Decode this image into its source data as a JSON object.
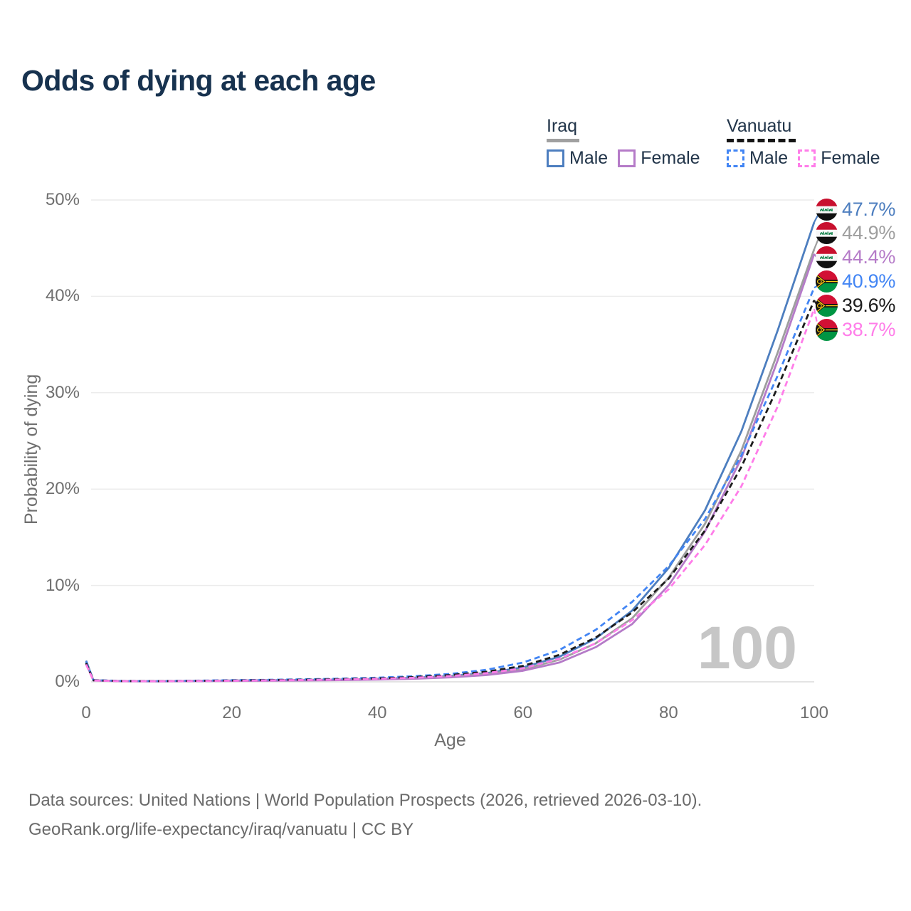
{
  "title": "Odds of dying at each age",
  "legend": {
    "groups": [
      {
        "country": "Iraq",
        "line_style": "solid",
        "underline_color": "#a0a0a0",
        "items": [
          {
            "label": "Male",
            "color": "#4d7ebf"
          },
          {
            "label": "Female",
            "color": "#b57bc8"
          }
        ]
      },
      {
        "country": "Vanuatu",
        "line_style": "dashed",
        "underline_color": "#151515",
        "items": [
          {
            "label": "Male",
            "color": "#4285f4"
          },
          {
            "label": "Female",
            "color": "#ff7de9"
          }
        ]
      }
    ]
  },
  "chart_data": {
    "type": "line",
    "title": "Odds of dying at each age",
    "xlabel": "Age",
    "ylabel": "Probability of dying",
    "xlim": [
      0,
      100
    ],
    "ylim": [
      0,
      50
    ],
    "x_ticks": [
      0,
      20,
      40,
      60,
      80,
      100
    ],
    "y_ticks": [
      "0%",
      "10%",
      "20%",
      "30%",
      "40%",
      "50%"
    ],
    "grid": "horizontal",
    "legend_position": "top-right",
    "age_indicator": "100",
    "x": [
      0,
      1,
      5,
      10,
      15,
      20,
      25,
      30,
      35,
      40,
      45,
      50,
      55,
      60,
      65,
      70,
      75,
      80,
      85,
      90,
      95,
      100
    ],
    "series": [
      {
        "id": "iraq-male",
        "country": "Iraq",
        "group": "Male",
        "color": "#4d7ebf",
        "dashed": false,
        "end_label": "47.7%",
        "end_value": 47.7,
        "values": [
          2.2,
          0.16,
          0.08,
          0.07,
          0.1,
          0.14,
          0.17,
          0.2,
          0.24,
          0.31,
          0.42,
          0.6,
          0.9,
          1.5,
          2.6,
          4.5,
          7.4,
          11.8,
          17.8,
          26.0,
          36.5,
          47.7
        ]
      },
      {
        "id": "iraq-all",
        "country": "Iraq",
        "group": "All",
        "color": "#9e9e9e",
        "dashed": false,
        "end_label": "44.9%",
        "end_value": 44.9,
        "values": [
          2.05,
          0.15,
          0.07,
          0.06,
          0.09,
          0.12,
          0.14,
          0.17,
          0.21,
          0.27,
          0.37,
          0.53,
          0.8,
          1.3,
          2.3,
          4.0,
          6.6,
          10.8,
          16.4,
          24.0,
          34.2,
          44.9
        ]
      },
      {
        "id": "iraq-female",
        "country": "Iraq",
        "group": "Female",
        "color": "#b57bc8",
        "dashed": false,
        "end_label": "44.4%",
        "end_value": 44.4,
        "values": [
          1.9,
          0.14,
          0.06,
          0.05,
          0.07,
          0.09,
          0.11,
          0.14,
          0.18,
          0.23,
          0.32,
          0.46,
          0.7,
          1.15,
          2.0,
          3.6,
          6.0,
          10.0,
          15.6,
          23.2,
          33.4,
          44.4
        ]
      },
      {
        "id": "vanuatu-male",
        "country": "Vanuatu",
        "group": "Male",
        "color": "#4285f4",
        "dashed": true,
        "end_label": "40.9%",
        "end_value": 40.9,
        "values": [
          2.1,
          0.18,
          0.09,
          0.08,
          0.12,
          0.17,
          0.21,
          0.26,
          0.33,
          0.43,
          0.58,
          0.82,
          1.25,
          2.0,
          3.3,
          5.4,
          8.3,
          12.0,
          16.9,
          23.5,
          31.8,
          40.9
        ]
      },
      {
        "id": "vanuatu-all",
        "country": "Vanuatu",
        "group": "All",
        "color": "#1c1c1c",
        "dashed": true,
        "end_label": "39.6%",
        "end_value": 39.6,
        "values": [
          1.95,
          0.16,
          0.08,
          0.07,
          0.1,
          0.14,
          0.18,
          0.22,
          0.28,
          0.36,
          0.49,
          0.7,
          1.05,
          1.65,
          2.8,
          4.6,
          7.2,
          10.7,
          15.7,
          22.3,
          30.6,
          39.6
        ]
      },
      {
        "id": "vanuatu-female",
        "country": "Vanuatu",
        "group": "Female",
        "color": "#ff7de9",
        "dashed": true,
        "end_label": "38.7%",
        "end_value": 38.7,
        "values": [
          1.8,
          0.14,
          0.07,
          0.06,
          0.09,
          0.12,
          0.15,
          0.19,
          0.24,
          0.31,
          0.42,
          0.6,
          0.9,
          1.4,
          2.4,
          4.0,
          6.4,
          9.6,
          14.2,
          20.3,
          28.6,
          38.7
        ]
      }
    ]
  },
  "footer": {
    "line1": "Data sources: United Nations | World Population Prospects (2026, retrieved 2026-03-10).",
    "line2": "GeoRank.org/life-expectancy/iraq/vanuatu | CC BY"
  }
}
